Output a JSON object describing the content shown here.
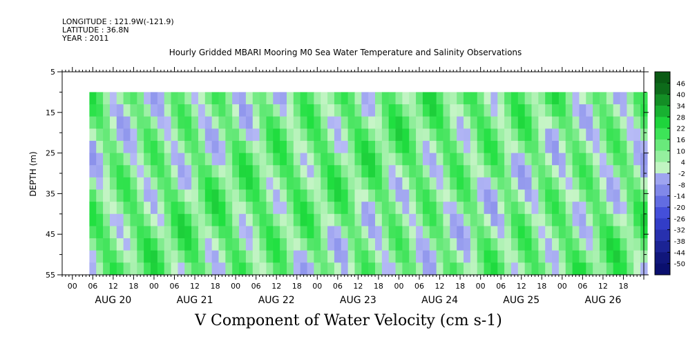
{
  "header": {
    "longitude": "LONGITUDE : 121.9W(-121.9)",
    "latitude": "LATITUDE : 36.8N",
    "year": "YEAR : 2011"
  },
  "chart_data": {
    "type": "heatmap",
    "title": "Hourly Gridded MBARI Mooring M0 Sea Water Temperature and Salinity Observations",
    "xlabel": "",
    "ylabel": "DEPTH (m)",
    "colorbar_title": "V Component of Water Velocity (cm s-1)",
    "y_ticks": [
      "5",
      "15",
      "25",
      "35",
      "45",
      "55"
    ],
    "ylim": [
      5,
      55
    ],
    "y_inverted": true,
    "data_depth_range": [
      10,
      55
    ],
    "x_hour_ticks": [
      "00",
      "06",
      "12",
      "18",
      "00",
      "06",
      "12",
      "18",
      "00",
      "06",
      "12",
      "18",
      "00",
      "06",
      "12",
      "18",
      "00",
      "06",
      "12",
      "18",
      "00",
      "06",
      "12",
      "18",
      "00",
      "06",
      "12",
      "18"
    ],
    "x_date_labels": [
      "AUG 20",
      "AUG 21",
      "AUG 22",
      "AUG 23",
      "AUG 24",
      "AUG 25",
      "AUG 26"
    ],
    "x_start": "2011-08-19 21:00",
    "x_end": "2011-08-27 00:00",
    "data_time_range": [
      "2011-08-20 05:00",
      "2011-08-26 23:00"
    ],
    "colorbar_levels": [
      "46",
      "40",
      "34",
      "28",
      "22",
      "16",
      "10",
      "4",
      "-2",
      "-8",
      "-14",
      "-20",
      "-26",
      "-32",
      "-38",
      "-44",
      "-50"
    ],
    "colormap": {
      "negative_low": "#0a0f6e",
      "negative_mid": "#3a46d8",
      "negative_high": "#b8bcf6",
      "positive_low": "#c8f5c8",
      "positive_mid": "#20e040",
      "positive_high": "#0a5a14"
    }
  }
}
